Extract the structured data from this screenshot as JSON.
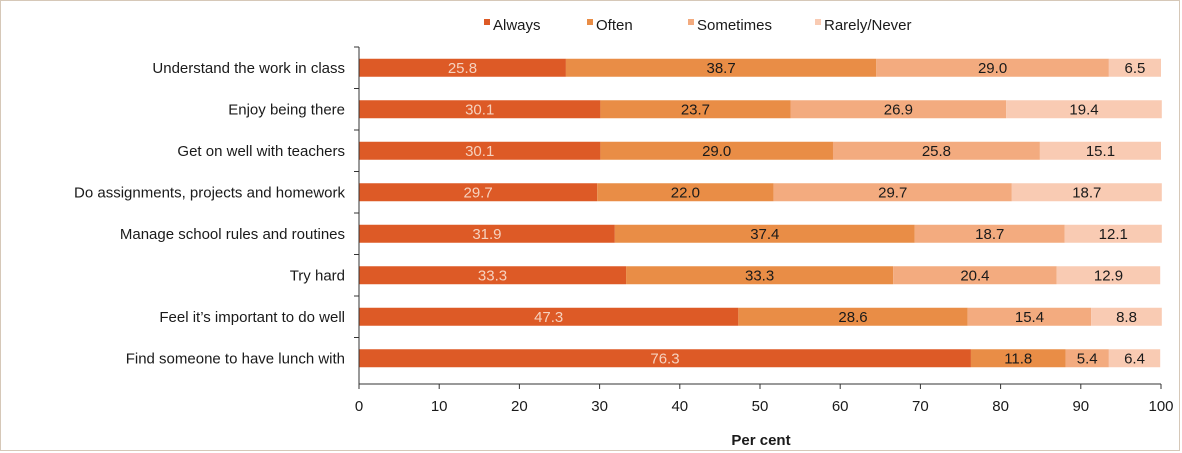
{
  "chart_data": {
    "type": "bar",
    "orientation": "horizontal",
    "stacked": true,
    "title": "",
    "xlabel": "Per cent",
    "ylabel": "",
    "xlim": [
      0,
      100
    ],
    "xticks": [
      "0",
      "10",
      "20",
      "30",
      "40",
      "50",
      "60",
      "70",
      "80",
      "90",
      "100"
    ],
    "legend_position": "top",
    "grid": false,
    "categories": [
      "Understand the work in class",
      "Enjoy being there",
      "Get on well with teachers",
      "Do assignments, projects and homework",
      "Manage school rules and routines",
      "Try hard",
      "Feel it’s important to do well",
      "Find someone to have lunch with"
    ],
    "series": [
      {
        "name": "Always",
        "color": "#dd5a26",
        "label_color": "#f6d2bf",
        "values": [
          25.8,
          30.1,
          30.1,
          29.7,
          31.9,
          33.3,
          47.3,
          76.3
        ],
        "labels": [
          "25.8",
          "30.1",
          "30.1",
          "29.7",
          "31.9",
          "33.3",
          "47.3",
          "76.3"
        ]
      },
      {
        "name": "Often",
        "color": "#e98d46",
        "label_color": "#1a1a1a",
        "values": [
          38.7,
          23.7,
          29.0,
          22.0,
          37.4,
          33.3,
          28.6,
          11.8
        ],
        "labels": [
          "38.7",
          "23.7",
          "29.0",
          "22.0",
          "37.4",
          "33.3",
          "28.6",
          "11.8"
        ]
      },
      {
        "name": "Sometimes",
        "color": "#f3ab7f",
        "label_color": "#1a1a1a",
        "values": [
          29.0,
          26.9,
          25.8,
          29.7,
          18.7,
          20.4,
          15.4,
          5.4
        ],
        "labels": [
          "29.0",
          "26.9",
          "25.8",
          "29.7",
          "18.7",
          "20.4",
          "15.4",
          "5.4"
        ]
      },
      {
        "name": "Rarely/Never",
        "color": "#f9cbb3",
        "label_color": "#1a1a1a",
        "values": [
          6.5,
          19.4,
          15.1,
          18.7,
          12.1,
          12.9,
          8.8,
          6.4
        ],
        "labels": [
          "6.5",
          "19.4",
          "15.1",
          "18.7",
          "12.1",
          "12.9",
          "8.8",
          "6.4"
        ]
      }
    ]
  }
}
